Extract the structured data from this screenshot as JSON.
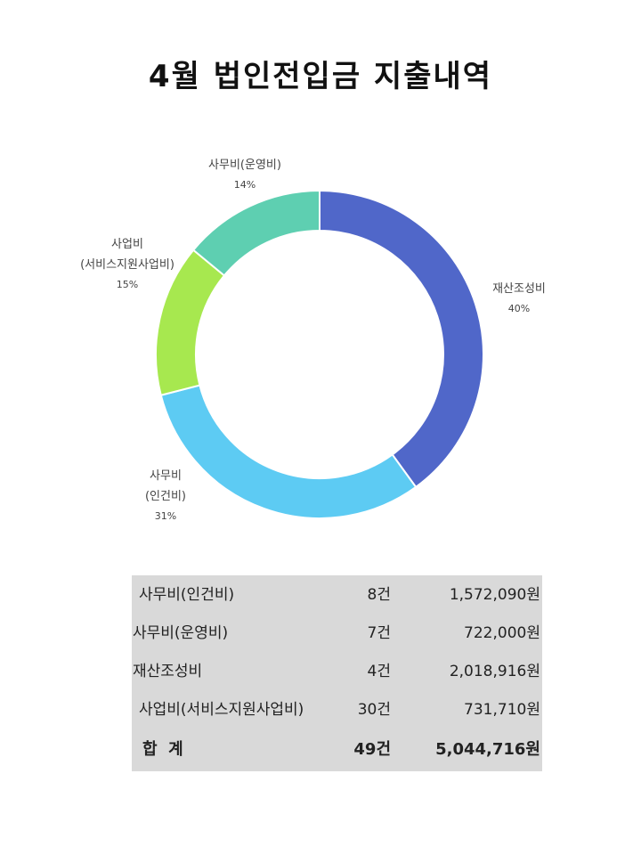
{
  "title": "4월 법인전입금 지출내역",
  "chart_data": {
    "type": "pie",
    "style": "donut",
    "slices": [
      {
        "label": [
          "재산조성비"
        ],
        "pct_label": "40%",
        "value": 40,
        "color": "#5067c9"
      },
      {
        "label": [
          "사무비",
          "(인건비)"
        ],
        "pct_label": "31%",
        "value": 31,
        "color": "#5dcbf3"
      },
      {
        "label": [
          "사업비",
          "(서비스지원사업비)"
        ],
        "pct_label": "15%",
        "value": 15,
        "color": "#a7e84f"
      },
      {
        "label": [
          "사무비(운영비)"
        ],
        "pct_label": "14%",
        "value": 14,
        "color": "#5ecfb1"
      }
    ]
  },
  "table": {
    "rows": [
      {
        "name": "사무비(인건비)",
        "count": "8건",
        "amount": "1,572,090원"
      },
      {
        "name": "사무비(운영비)",
        "count": "7건",
        "amount": "722,000원"
      },
      {
        "name": "재산조성비",
        "count": "4건",
        "amount": "2,018,916원"
      },
      {
        "name": "사업비(서비스지원사업비)",
        "count": "30건",
        "amount": "731,710원"
      }
    ],
    "total": {
      "name": "합  계",
      "count": "49건",
      "amount": "5,044,716원"
    }
  }
}
